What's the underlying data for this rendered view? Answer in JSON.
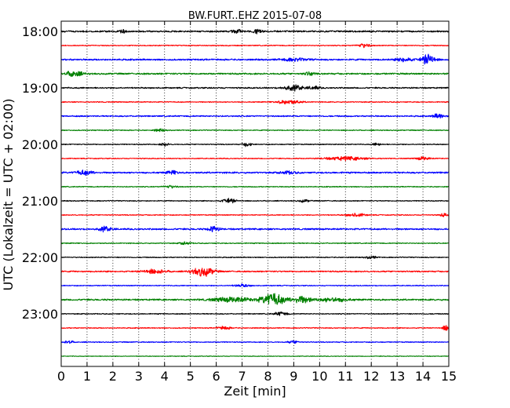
{
  "chart_data": {
    "type": "line",
    "title": "BW.FURT..EHZ 2015-07-08",
    "xlabel": "Zeit  [min]",
    "ylabel": "UTC (Lokalzeit = UTC + 02:00)",
    "xlim": [
      0,
      15
    ],
    "x_ticks": [
      "0",
      "1",
      "2",
      "3",
      "4",
      "5",
      "6",
      "7",
      "8",
      "9",
      "10",
      "11",
      "12",
      "13",
      "14",
      "15"
    ],
    "y_ticks": [
      "18:00",
      "19:00",
      "20:00",
      "21:00",
      "22:00",
      "23:00"
    ],
    "grid_x": "dotted",
    "colors": [
      "#000000",
      "#ff0000",
      "#0000ff",
      "#008000"
    ],
    "traces": [
      {
        "start": "18:00",
        "color": "#000000",
        "amplitude": 0.12,
        "bursts": [
          {
            "t": 2.4,
            "amp": 0.22,
            "width": 0.25
          },
          {
            "t": 6.8,
            "amp": 0.3,
            "width": 0.35
          },
          {
            "t": 7.6,
            "amp": 0.35,
            "width": 0.3
          }
        ]
      },
      {
        "start": "18:15",
        "color": "#ff0000",
        "amplitude": 0.07,
        "bursts": [
          {
            "t": 11.7,
            "amp": 0.3,
            "width": 0.5
          }
        ]
      },
      {
        "start": "18:30",
        "color": "#0000ff",
        "amplitude": 0.12,
        "bursts": [
          {
            "t": 9.0,
            "amp": 0.2,
            "width": 1.0
          },
          {
            "t": 13.3,
            "amp": 0.3,
            "width": 0.6
          },
          {
            "t": 14.2,
            "amp": 0.8,
            "width": 0.5
          }
        ]
      },
      {
        "start": "18:45",
        "color": "#008000",
        "amplitude": 0.12,
        "bursts": [
          {
            "t": 0.5,
            "amp": 0.45,
            "width": 0.6
          },
          {
            "t": 9.6,
            "amp": 0.25,
            "width": 0.4
          }
        ]
      },
      {
        "start": "19:00",
        "color": "#000000",
        "amplitude": 0.1,
        "bursts": [
          {
            "t": 9.0,
            "amp": 0.4,
            "width": 0.8
          },
          {
            "t": 9.8,
            "amp": 0.25,
            "width": 0.4
          }
        ]
      },
      {
        "start": "19:15",
        "color": "#ff0000",
        "amplitude": 0.07,
        "bursts": [
          {
            "t": 8.8,
            "amp": 0.3,
            "width": 0.9
          }
        ]
      },
      {
        "start": "19:30",
        "color": "#0000ff",
        "amplitude": 0.1,
        "bursts": [
          {
            "t": 14.6,
            "amp": 0.35,
            "width": 0.4
          }
        ]
      },
      {
        "start": "19:45",
        "color": "#008000",
        "amplitude": 0.07,
        "bursts": [
          {
            "t": 3.8,
            "amp": 0.2,
            "width": 0.4
          }
        ]
      },
      {
        "start": "20:00",
        "color": "#000000",
        "amplitude": 0.07,
        "bursts": [
          {
            "t": 4.0,
            "amp": 0.25,
            "width": 0.3
          },
          {
            "t": 7.2,
            "amp": 0.35,
            "width": 0.3
          },
          {
            "t": 12.2,
            "amp": 0.2,
            "width": 0.3
          }
        ]
      },
      {
        "start": "20:15",
        "color": "#ff0000",
        "amplitude": 0.07,
        "bursts": [
          {
            "t": 11.0,
            "amp": 0.28,
            "width": 1.5
          },
          {
            "t": 14.0,
            "amp": 0.25,
            "width": 0.5
          }
        ]
      },
      {
        "start": "20:30",
        "color": "#0000ff",
        "amplitude": 0.12,
        "bursts": [
          {
            "t": 0.9,
            "amp": 0.35,
            "width": 0.6
          },
          {
            "t": 4.3,
            "amp": 0.3,
            "width": 0.4
          },
          {
            "t": 8.8,
            "amp": 0.2,
            "width": 0.6
          }
        ]
      },
      {
        "start": "20:45",
        "color": "#008000",
        "amplitude": 0.07,
        "bursts": [
          {
            "t": 4.2,
            "amp": 0.2,
            "width": 0.5
          }
        ]
      },
      {
        "start": "21:00",
        "color": "#000000",
        "amplitude": 0.07,
        "bursts": [
          {
            "t": 6.5,
            "amp": 0.35,
            "width": 0.5
          },
          {
            "t": 9.4,
            "amp": 0.2,
            "width": 0.4
          }
        ]
      },
      {
        "start": "21:15",
        "color": "#ff0000",
        "amplitude": 0.07,
        "bursts": [
          {
            "t": 11.4,
            "amp": 0.25,
            "width": 0.7
          },
          {
            "t": 14.8,
            "amp": 0.25,
            "width": 0.3
          }
        ]
      },
      {
        "start": "21:30",
        "color": "#0000ff",
        "amplitude": 0.12,
        "bursts": [
          {
            "t": 1.7,
            "amp": 0.35,
            "width": 0.5
          },
          {
            "t": 5.9,
            "amp": 0.45,
            "width": 0.4
          }
        ]
      },
      {
        "start": "21:45",
        "color": "#008000",
        "amplitude": 0.07,
        "bursts": [
          {
            "t": 4.8,
            "amp": 0.2,
            "width": 0.4
          }
        ]
      },
      {
        "start": "22:00",
        "color": "#000000",
        "amplitude": 0.07,
        "bursts": [
          {
            "t": 12.0,
            "amp": 0.2,
            "width": 0.4
          }
        ]
      },
      {
        "start": "22:15",
        "color": "#ff0000",
        "amplitude": 0.1,
        "bursts": [
          {
            "t": 3.6,
            "amp": 0.3,
            "width": 0.9
          },
          {
            "t": 5.5,
            "amp": 0.7,
            "width": 0.8
          }
        ]
      },
      {
        "start": "22:30",
        "color": "#0000ff",
        "amplitude": 0.07,
        "bursts": [
          {
            "t": 7.0,
            "amp": 0.2,
            "width": 0.6
          }
        ]
      },
      {
        "start": "22:45",
        "color": "#008000",
        "amplitude": 0.12,
        "bursts": [
          {
            "t": 6.6,
            "amp": 0.35,
            "width": 1.5
          },
          {
            "t": 8.2,
            "amp": 0.95,
            "width": 0.9
          },
          {
            "t": 9.3,
            "amp": 0.5,
            "width": 0.7
          },
          {
            "t": 10.5,
            "amp": 0.3,
            "width": 1.2
          }
        ]
      },
      {
        "start": "23:00",
        "color": "#000000",
        "amplitude": 0.07,
        "bursts": [
          {
            "t": 8.5,
            "amp": 0.3,
            "width": 0.5
          }
        ]
      },
      {
        "start": "23:15",
        "color": "#ff0000",
        "amplitude": 0.07,
        "bursts": [
          {
            "t": 6.3,
            "amp": 0.25,
            "width": 0.5
          },
          {
            "t": 14.9,
            "amp": 0.45,
            "width": 0.25
          }
        ]
      },
      {
        "start": "23:30",
        "color": "#0000ff",
        "amplitude": 0.07,
        "bursts": [
          {
            "t": 0.3,
            "amp": 0.25,
            "width": 0.3
          },
          {
            "t": 9.0,
            "amp": 0.2,
            "width": 0.4
          }
        ]
      },
      {
        "start": "23:45",
        "color": "#008000",
        "amplitude": 0.05,
        "bursts": []
      }
    ]
  }
}
